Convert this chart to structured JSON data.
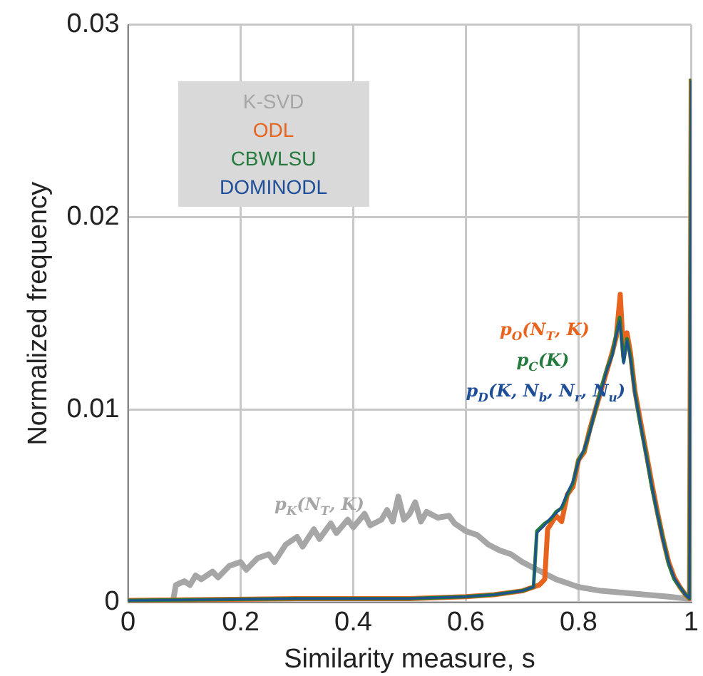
{
  "chart_data": {
    "type": "line",
    "xlabel": "Similarity measure, s",
    "ylabel": "Normalized frequency",
    "xlim": [
      0,
      1
    ],
    "ylim": [
      0,
      0.03
    ],
    "xticks": [
      0,
      0.2,
      0.4,
      0.6,
      0.8,
      1
    ],
    "yticks": [
      0,
      0.01,
      0.02,
      0.03
    ],
    "grid": true,
    "legend": "top left",
    "marker": "none",
    "line_style": "solid",
    "series": [
      {
        "name": "K-SVD",
        "color": "#a6a6a6",
        "x": [
          0,
          0.05,
          0.08,
          0.085,
          0.1,
          0.11,
          0.12,
          0.13,
          0.15,
          0.16,
          0.18,
          0.2,
          0.21,
          0.23,
          0.25,
          0.26,
          0.28,
          0.3,
          0.31,
          0.33,
          0.34,
          0.36,
          0.37,
          0.39,
          0.4,
          0.42,
          0.43,
          0.45,
          0.46,
          0.47,
          0.48,
          0.49,
          0.5,
          0.51,
          0.52,
          0.53,
          0.55,
          0.57,
          0.58,
          0.6,
          0.62,
          0.64,
          0.66,
          0.68,
          0.7,
          0.72,
          0.74,
          0.76,
          0.78,
          0.8,
          0.84,
          0.88,
          0.92,
          0.96,
          0.99,
          1
        ],
        "values": [
          0,
          0.0001,
          0.0001,
          0.0009,
          0.0011,
          0.0009,
          0.0014,
          0.0012,
          0.0016,
          0.0013,
          0.0019,
          0.0021,
          0.0017,
          0.0023,
          0.0025,
          0.0021,
          0.003,
          0.0034,
          0.0029,
          0.0038,
          0.0033,
          0.0041,
          0.0036,
          0.0043,
          0.0039,
          0.0046,
          0.004,
          0.0043,
          0.0048,
          0.0042,
          0.0055,
          0.0043,
          0.0046,
          0.0052,
          0.0042,
          0.0047,
          0.0044,
          0.0045,
          0.0041,
          0.0037,
          0.0035,
          0.003,
          0.0027,
          0.0025,
          0.0021,
          0.0018,
          0.0015,
          0.0012,
          0.001,
          0.0008,
          0.0006,
          0.0005,
          0.0004,
          0.0003,
          0.0002,
          0.0002
        ]
      },
      {
        "name": "ODL",
        "color": "#e8641e",
        "x": [
          0,
          0.3,
          0.5,
          0.6,
          0.65,
          0.7,
          0.73,
          0.74,
          0.745,
          0.76,
          0.77,
          0.78,
          0.79,
          0.8,
          0.81,
          0.82,
          0.83,
          0.84,
          0.85,
          0.86,
          0.867,
          0.874,
          0.88,
          0.886,
          0.892,
          0.9,
          0.91,
          0.92,
          0.93,
          0.94,
          0.95,
          0.96,
          0.97,
          0.98,
          0.99,
          0.997,
          1
        ],
        "values": [
          0.0001,
          0.0002,
          0.0002,
          0.0003,
          0.0004,
          0.0006,
          0.0009,
          0.0012,
          0.0038,
          0.0045,
          0.0042,
          0.0056,
          0.006,
          0.0074,
          0.0078,
          0.009,
          0.01,
          0.011,
          0.012,
          0.013,
          0.0138,
          0.016,
          0.0128,
          0.014,
          0.013,
          0.011,
          0.0094,
          0.0078,
          0.0062,
          0.0047,
          0.0033,
          0.0021,
          0.0013,
          0.0008,
          0.0004,
          0.0002,
          0.0272
        ]
      },
      {
        "name": "DOMINODL",
        "color": "#1f4e99",
        "x": [
          0,
          0.3,
          0.5,
          0.6,
          0.65,
          0.7,
          0.72,
          0.726,
          0.74,
          0.75,
          0.76,
          0.77,
          0.78,
          0.79,
          0.8,
          0.81,
          0.82,
          0.83,
          0.84,
          0.85,
          0.86,
          0.866,
          0.873,
          0.88,
          0.886,
          0.892,
          0.9,
          0.91,
          0.92,
          0.93,
          0.94,
          0.95,
          0.96,
          0.97,
          0.98,
          0.99,
          0.997,
          1
        ],
        "values": [
          0.0001,
          0.0002,
          0.0002,
          0.0003,
          0.0004,
          0.0006,
          0.0008,
          0.0036,
          0.004,
          0.0044,
          0.0046,
          0.005,
          0.0057,
          0.0063,
          0.0073,
          0.008,
          0.0088,
          0.0101,
          0.0109,
          0.012,
          0.0128,
          0.0137,
          0.0146,
          0.0124,
          0.0136,
          0.0127,
          0.0108,
          0.0093,
          0.0076,
          0.0061,
          0.0046,
          0.0032,
          0.0021,
          0.0013,
          0.0008,
          0.0004,
          0.0002,
          0.0271
        ]
      },
      {
        "name": "CBWLSU",
        "color": "#237a3c",
        "x": [
          0,
          0.3,
          0.5,
          0.6,
          0.65,
          0.7,
          0.72,
          0.726,
          0.74,
          0.75,
          0.76,
          0.77,
          0.78,
          0.79,
          0.8,
          0.81,
          0.82,
          0.83,
          0.84,
          0.85,
          0.86,
          0.866,
          0.873,
          0.88,
          0.886,
          0.892,
          0.9,
          0.91,
          0.92,
          0.93,
          0.94,
          0.95,
          0.96,
          0.97,
          0.98,
          0.99,
          0.997,
          1
        ],
        "values": [
          0.0001,
          0.0002,
          0.0002,
          0.0003,
          0.0004,
          0.0006,
          0.0008,
          0.0037,
          0.0041,
          0.0043,
          0.0047,
          0.0049,
          0.0056,
          0.0062,
          0.0074,
          0.0079,
          0.0089,
          0.01,
          0.0111,
          0.0121,
          0.0129,
          0.0138,
          0.0148,
          0.0125,
          0.0137,
          0.0128,
          0.0109,
          0.0092,
          0.0077,
          0.006,
          0.0046,
          0.0033,
          0.002,
          0.0012,
          0.0008,
          0.0004,
          0.0002,
          0.0272
        ]
      }
    ],
    "annotations": [
      "p$_{K}$(N$_{T}$, K)",
      "p$_{O}$(N$_{T}$, K)",
      "p$_{C}$(K)",
      "p$_{D}$(K, N$_{b}$, N$_{r}$, N$_{u}$)"
    ]
  }
}
